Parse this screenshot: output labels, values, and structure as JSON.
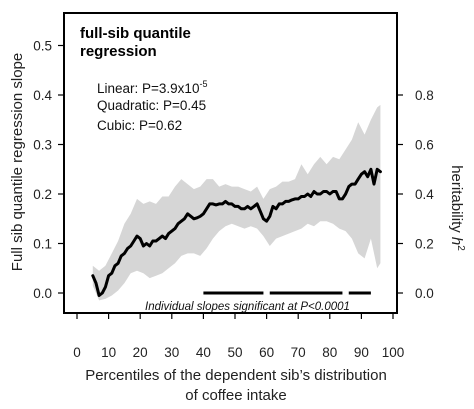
{
  "chart_data": {
    "type": "line",
    "title_line1": "full-sib quantile",
    "title_line2": "regression",
    "xlabel_line1": "Percentiles of the dependent sib’s distribution",
    "xlabel_line2": "of coffee intake",
    "ylabel": "Full sib quantile regression slope",
    "y2label_main": "heritability ",
    "y2label_sym": "h",
    "y2label_sup": "2",
    "xlim": [
      0,
      100
    ],
    "ylim": [
      -0.03,
      0.55
    ],
    "x_ticks": [
      0,
      10,
      20,
      30,
      40,
      50,
      60,
      70,
      80,
      90,
      100
    ],
    "y_ticks": [
      "0.0",
      "0.1",
      "0.2",
      "0.3",
      "0.4",
      "0.5"
    ],
    "y_tick_values": [
      0,
      0.1,
      0.2,
      0.3,
      0.4,
      0.5
    ],
    "y2_ticks": [
      "0.0",
      "0.2",
      "0.4",
      "0.6",
      "0.8"
    ],
    "y2_tick_values": [
      0,
      0.2,
      0.4,
      0.6,
      0.8
    ],
    "y2_scale_note": "heritability = 2 x slope",
    "stats": {
      "linear_prefix": "Linear: P=3.9x10",
      "linear_exp": "-5",
      "quadratic": "Quadratic: P=0.45",
      "cubic": "Cubic: P=0.62"
    },
    "significance_note": "Individual slopes significant at P<0.0001",
    "significance_segments": [
      [
        40,
        59
      ],
      [
        61,
        84
      ],
      [
        86,
        93
      ]
    ],
    "significance_y": 0.0,
    "series": [
      {
        "role": "estimate",
        "color": "#000000",
        "x": [
          5,
          6,
          7,
          8,
          9,
          10,
          11,
          12,
          13,
          14,
          15,
          16,
          17,
          18,
          19,
          20,
          21,
          22,
          23,
          24,
          25,
          26,
          27,
          28,
          29,
          30,
          31,
          32,
          33,
          34,
          35,
          36,
          37,
          38,
          39,
          40,
          41,
          42,
          43,
          44,
          45,
          46,
          47,
          48,
          49,
          50,
          51,
          52,
          53,
          54,
          55,
          56,
          57,
          58,
          59,
          60,
          61,
          62,
          63,
          64,
          65,
          66,
          67,
          68,
          69,
          70,
          71,
          72,
          73,
          74,
          75,
          76,
          77,
          78,
          79,
          80,
          81,
          82,
          83,
          84,
          85,
          86,
          87,
          88,
          89,
          90,
          91,
          92,
          93,
          94,
          95,
          96
        ],
        "y": [
          0.035,
          0.02,
          -0.005,
          0.0,
          0.012,
          0.035,
          0.04,
          0.055,
          0.06,
          0.075,
          0.08,
          0.09,
          0.095,
          0.105,
          0.115,
          0.11,
          0.095,
          0.1,
          0.095,
          0.105,
          0.105,
          0.11,
          0.115,
          0.11,
          0.12,
          0.125,
          0.13,
          0.14,
          0.145,
          0.15,
          0.16,
          0.155,
          0.15,
          0.152,
          0.155,
          0.16,
          0.17,
          0.18,
          0.18,
          0.178,
          0.18,
          0.18,
          0.185,
          0.18,
          0.18,
          0.175,
          0.175,
          0.17,
          0.17,
          0.175,
          0.17,
          0.175,
          0.18,
          0.165,
          0.15,
          0.145,
          0.155,
          0.175,
          0.17,
          0.18,
          0.18,
          0.185,
          0.185,
          0.188,
          0.19,
          0.19,
          0.195,
          0.195,
          0.2,
          0.195,
          0.205,
          0.2,
          0.2,
          0.205,
          0.205,
          0.2,
          0.205,
          0.205,
          0.19,
          0.19,
          0.2,
          0.215,
          0.22,
          0.22,
          0.23,
          0.24,
          0.245,
          0.235,
          0.25,
          0.22,
          0.25,
          0.245
        ]
      },
      {
        "role": "confidence_upper",
        "color": "#d6d6d6",
        "x": [
          5,
          7,
          9,
          11,
          13,
          15,
          17,
          19,
          21,
          23,
          25,
          27,
          29,
          31,
          33,
          35,
          37,
          39,
          41,
          43,
          45,
          47,
          49,
          51,
          53,
          55,
          57,
          59,
          61,
          63,
          65,
          67,
          69,
          71,
          73,
          75,
          77,
          79,
          81,
          83,
          85,
          87,
          89,
          91,
          93,
          95,
          96
        ],
        "y": [
          0.055,
          0.045,
          0.055,
          0.08,
          0.105,
          0.14,
          0.16,
          0.19,
          0.18,
          0.185,
          0.18,
          0.195,
          0.195,
          0.215,
          0.23,
          0.22,
          0.21,
          0.215,
          0.23,
          0.23,
          0.215,
          0.22,
          0.215,
          0.215,
          0.21,
          0.205,
          0.215,
          0.19,
          0.21,
          0.215,
          0.225,
          0.225,
          0.23,
          0.26,
          0.24,
          0.26,
          0.275,
          0.26,
          0.275,
          0.27,
          0.29,
          0.31,
          0.345,
          0.32,
          0.35,
          0.375,
          0.38
        ]
      },
      {
        "role": "confidence_lower",
        "color": "#d6d6d6",
        "x": [
          5,
          7,
          9,
          11,
          13,
          15,
          17,
          19,
          21,
          23,
          25,
          27,
          29,
          31,
          33,
          35,
          37,
          39,
          41,
          43,
          45,
          47,
          49,
          51,
          53,
          55,
          57,
          59,
          61,
          63,
          65,
          67,
          69,
          71,
          73,
          75,
          77,
          79,
          81,
          83,
          85,
          87,
          89,
          91,
          93,
          95,
          96
        ],
        "y": [
          0.015,
          -0.015,
          -0.012,
          -0.005,
          0.005,
          0.02,
          0.04,
          0.045,
          0.04,
          0.03,
          0.035,
          0.04,
          0.05,
          0.06,
          0.075,
          0.08,
          0.08,
          0.075,
          0.09,
          0.11,
          0.125,
          0.135,
          0.14,
          0.135,
          0.13,
          0.135,
          0.13,
          0.115,
          0.095,
          0.11,
          0.115,
          0.12,
          0.125,
          0.13,
          0.14,
          0.135,
          0.145,
          0.145,
          0.14,
          0.13,
          0.125,
          0.11,
          0.08,
          0.07,
          0.11,
          0.05,
          0.06
        ]
      }
    ],
    "grid": false,
    "legend": "none"
  }
}
